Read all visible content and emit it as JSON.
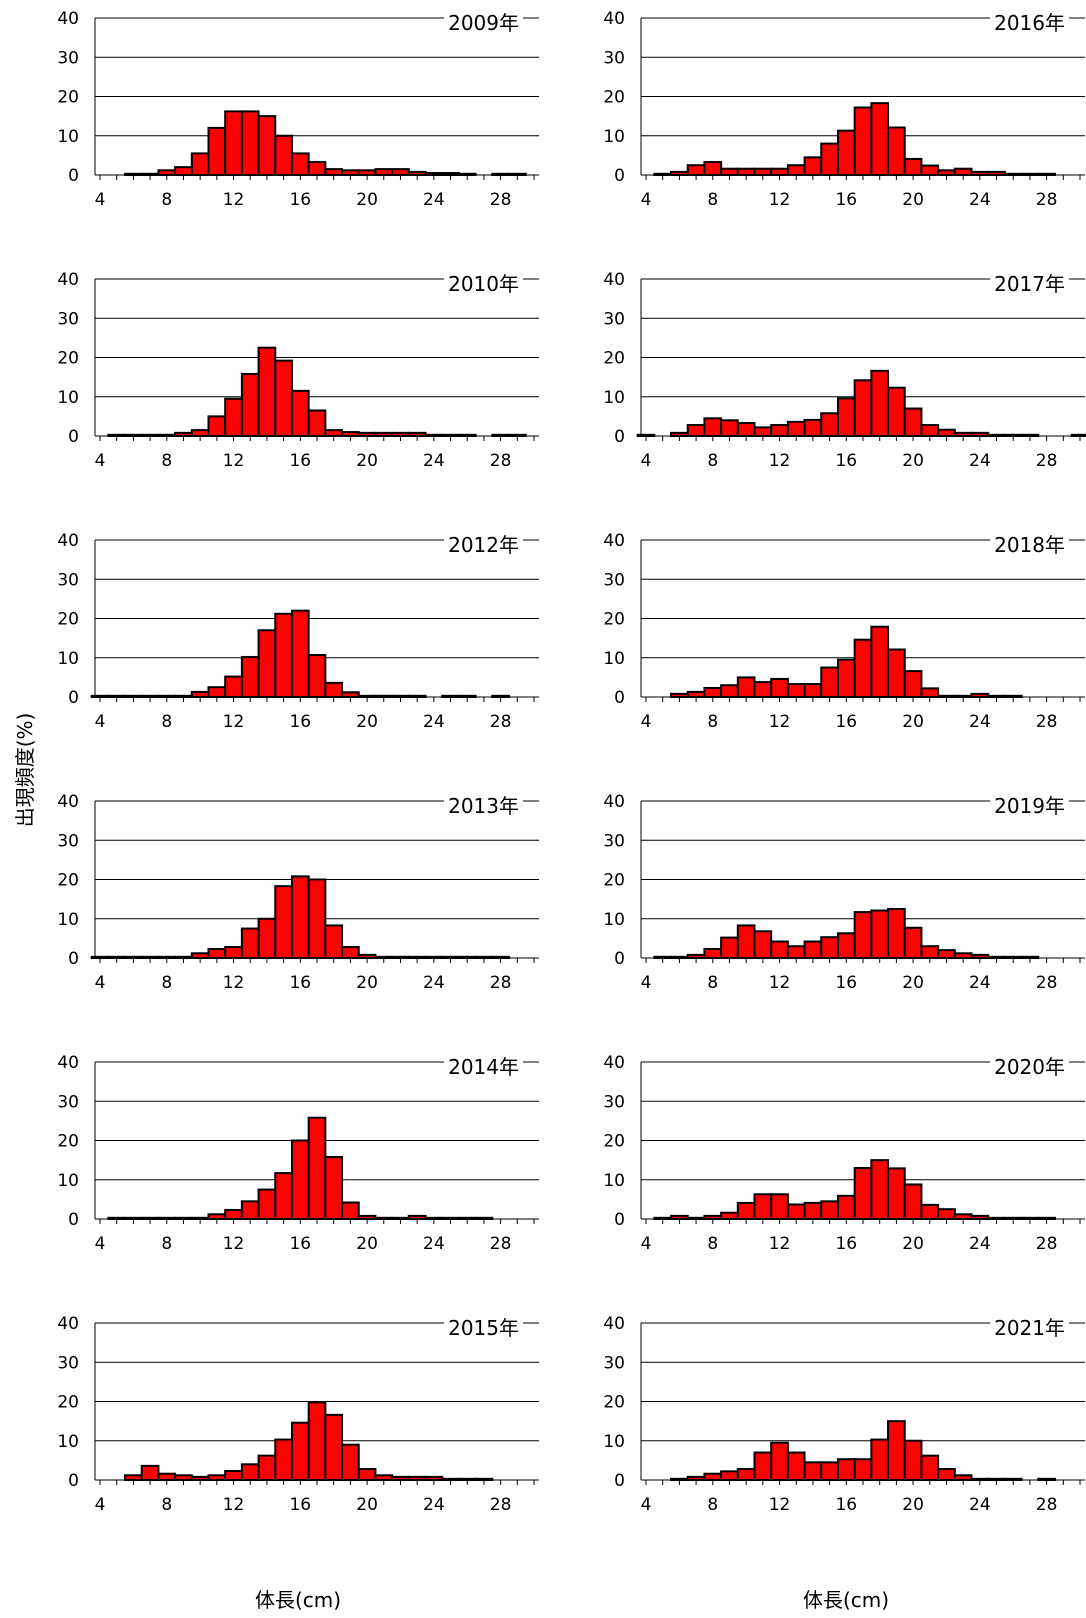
{
  "figure": {
    "y_axis_label": "出現頻度(%)",
    "x_axis_label_left": "体長(cm)",
    "x_axis_label_right": "体長(cm)"
  },
  "colors": {
    "bar": "#ff0000",
    "bar_edge": "#000000",
    "grid": "#000000",
    "background": "#ffffff"
  },
  "chart_data": [
    {
      "type": "bar",
      "title": "2009年",
      "x": [
        6,
        7,
        8,
        9,
        10,
        11,
        12,
        13,
        14,
        15,
        16,
        17,
        18,
        19,
        20,
        21,
        22,
        23,
        24,
        25,
        26,
        28,
        29
      ],
      "values": [
        0.3,
        0.3,
        1.2,
        2.0,
        5.5,
        12,
        16.2,
        16.2,
        15,
        10,
        5.5,
        3.3,
        1.5,
        1.2,
        1.2,
        1.5,
        1.5,
        0.8,
        0.5,
        0.5,
        0.3,
        0.3,
        0.3
      ],
      "xticks": [
        4,
        8,
        12,
        16,
        20,
        24,
        28
      ],
      "yticks": [
        0,
        10,
        20,
        30,
        40
      ],
      "ylim": [
        0,
        40
      ],
      "xlim": [
        4,
        30
      ]
    },
    {
      "type": "bar",
      "title": "2010年",
      "x": [
        5,
        6,
        7,
        8,
        9,
        10,
        11,
        12,
        13,
        14,
        15,
        16,
        17,
        18,
        19,
        20,
        21,
        22,
        23,
        24,
        25,
        26,
        28,
        29
      ],
      "values": [
        0.3,
        0.3,
        0.3,
        0.3,
        0.8,
        1.5,
        5,
        9.5,
        15.8,
        22.5,
        19.2,
        11.5,
        6.5,
        1.5,
        1,
        0.8,
        0.8,
        0.8,
        0.8,
        0.3,
        0.3,
        0.3,
        0.3,
        0.3
      ],
      "xticks": [
        4,
        8,
        12,
        16,
        20,
        24,
        28
      ],
      "yticks": [
        0,
        10,
        20,
        30,
        40
      ],
      "ylim": [
        0,
        40
      ],
      "xlim": [
        4,
        30
      ]
    },
    {
      "type": "bar",
      "title": "2012年",
      "x": [
        4,
        5,
        6,
        7,
        8,
        9,
        10,
        11,
        12,
        13,
        14,
        15,
        16,
        17,
        18,
        19,
        20,
        21,
        22,
        23,
        25,
        26,
        28
      ],
      "values": [
        0.3,
        0.3,
        0.3,
        0.3,
        0.3,
        0.3,
        1.3,
        2.5,
        5.2,
        10.2,
        17,
        21.2,
        22,
        10.7,
        3.6,
        1.2,
        0.3,
        0.3,
        0.3,
        0.3,
        0.3,
        0.3,
        0.3
      ],
      "xticks": [
        4,
        8,
        12,
        16,
        20,
        24,
        28
      ],
      "yticks": [
        0,
        10,
        20,
        30,
        40
      ],
      "ylim": [
        0,
        40
      ],
      "xlim": [
        4,
        30
      ]
    },
    {
      "type": "bar",
      "title": "2013年",
      "x": [
        4,
        5,
        6,
        7,
        8,
        9,
        10,
        11,
        12,
        13,
        14,
        15,
        16,
        17,
        18,
        19,
        20,
        21,
        22,
        23,
        24,
        25,
        26,
        27,
        28
      ],
      "values": [
        0.3,
        0.3,
        0.3,
        0.3,
        0.3,
        0.3,
        1.2,
        2.3,
        2.8,
        7.5,
        10,
        18.3,
        20.8,
        20,
        8.3,
        2.8,
        0.8,
        0.3,
        0.3,
        0.3,
        0.3,
        0.3,
        0.3,
        0.3,
        0.3
      ],
      "xticks": [
        4,
        8,
        12,
        16,
        20,
        24,
        28
      ],
      "yticks": [
        0,
        10,
        20,
        30,
        40
      ],
      "ylim": [
        0,
        40
      ],
      "xlim": [
        4,
        30
      ]
    },
    {
      "type": "bar",
      "title": "2014年",
      "x": [
        5,
        6,
        7,
        8,
        9,
        10,
        11,
        12,
        13,
        14,
        15,
        16,
        17,
        18,
        19,
        20,
        21,
        22,
        23,
        24,
        25,
        26,
        27
      ],
      "values": [
        0.3,
        0.3,
        0.3,
        0.3,
        0.3,
        0.3,
        1.2,
        2.3,
        4.5,
        7.5,
        11.7,
        20,
        25.8,
        15.8,
        4.2,
        0.8,
        0.3,
        0.3,
        0.8,
        0.3,
        0.3,
        0.3,
        0.3
      ],
      "xticks": [
        4,
        8,
        12,
        16,
        20,
        24,
        28
      ],
      "yticks": [
        0,
        10,
        20,
        30,
        40
      ],
      "ylim": [
        0,
        40
      ],
      "xlim": [
        4,
        30
      ]
    },
    {
      "type": "bar",
      "title": "2015年",
      "x": [
        6,
        7,
        8,
        9,
        10,
        11,
        12,
        13,
        14,
        15,
        16,
        17,
        18,
        19,
        20,
        21,
        22,
        23,
        24,
        25,
        26,
        27
      ],
      "values": [
        1.2,
        3.6,
        1.6,
        1.2,
        0.8,
        1.2,
        2.3,
        4,
        6.2,
        10.3,
        14.6,
        19.8,
        16.6,
        9,
        2.8,
        1.2,
        0.8,
        0.8,
        0.8,
        0.3,
        0.3,
        0.3
      ],
      "xticks": [
        4,
        8,
        12,
        16,
        20,
        24,
        28
      ],
      "yticks": [
        0,
        10,
        20,
        30,
        40
      ],
      "ylim": [
        0,
        40
      ],
      "xlim": [
        4,
        30
      ]
    },
    {
      "type": "bar",
      "title": "2016年",
      "x": [
        5,
        6,
        7,
        8,
        9,
        10,
        11,
        12,
        13,
        14,
        15,
        16,
        17,
        18,
        19,
        20,
        21,
        22,
        23,
        24,
        25,
        26,
        27,
        28
      ],
      "values": [
        0.3,
        0.8,
        2.5,
        3.3,
        1.6,
        1.6,
        1.6,
        1.6,
        2.5,
        4.5,
        8,
        11.3,
        17.2,
        18.3,
        12.1,
        4.1,
        2.4,
        1.2,
        1.6,
        0.8,
        0.8,
        0.3,
        0.3,
        0.3
      ],
      "xticks": [
        4,
        8,
        12,
        16,
        20,
        24,
        28
      ],
      "yticks": [
        0,
        10,
        20,
        30,
        40
      ],
      "ylim": [
        0,
        40
      ],
      "xlim": [
        4,
        30
      ]
    },
    {
      "type": "bar",
      "title": "2017年",
      "x": [
        4,
        6,
        7,
        8,
        9,
        10,
        11,
        12,
        13,
        14,
        15,
        16,
        17,
        18,
        19,
        20,
        21,
        22,
        23,
        24,
        25,
        26,
        27,
        30
      ],
      "values": [
        0.3,
        0.8,
        2.8,
        4.5,
        4,
        3.3,
        2.2,
        2.8,
        3.6,
        4.1,
        5.8,
        9.6,
        14.2,
        16.6,
        12.3,
        7,
        2.8,
        1.6,
        0.8,
        0.8,
        0.3,
        0.3,
        0.3,
        0.3
      ],
      "xticks": [
        4,
        8,
        12,
        16,
        20,
        24,
        28
      ],
      "yticks": [
        0,
        10,
        20,
        30,
        40
      ],
      "ylim": [
        0,
        40
      ],
      "xlim": [
        4,
        30
      ]
    },
    {
      "type": "bar",
      "title": "2018年",
      "x": [
        6,
        7,
        8,
        9,
        10,
        11,
        12,
        13,
        14,
        15,
        16,
        17,
        18,
        19,
        20,
        21,
        22,
        23,
        24,
        25,
        26
      ],
      "values": [
        0.8,
        1.3,
        2.3,
        3,
        5,
        3.8,
        4.6,
        3.3,
        3.3,
        7.5,
        9.5,
        14.6,
        17.9,
        12.1,
        6.6,
        2.2,
        0.3,
        0.3,
        0.8,
        0.3,
        0.3
      ],
      "xticks": [
        4,
        8,
        12,
        16,
        20,
        24,
        28
      ],
      "yticks": [
        0,
        10,
        20,
        30,
        40
      ],
      "ylim": [
        0,
        40
      ],
      "xlim": [
        4,
        30
      ]
    },
    {
      "type": "bar",
      "title": "2019年",
      "x": [
        5,
        6,
        7,
        8,
        9,
        10,
        11,
        12,
        13,
        14,
        15,
        16,
        17,
        18,
        19,
        20,
        21,
        22,
        23,
        24,
        25,
        26,
        27
      ],
      "values": [
        0.3,
        0.3,
        0.8,
        2.3,
        5.2,
        8.3,
        6.8,
        4.2,
        3,
        4.2,
        5.3,
        6.3,
        11.7,
        12.1,
        12.5,
        7.7,
        3,
        2,
        1.2,
        0.8,
        0.3,
        0.3,
        0.3
      ],
      "xticks": [
        4,
        8,
        12,
        16,
        20,
        24,
        28
      ],
      "yticks": [
        0,
        10,
        20,
        30,
        40
      ],
      "ylim": [
        0,
        40
      ],
      "xlim": [
        4,
        30
      ]
    },
    {
      "type": "bar",
      "title": "2020年",
      "x": [
        5,
        6,
        7,
        8,
        9,
        10,
        11,
        12,
        13,
        14,
        15,
        16,
        17,
        18,
        19,
        20,
        21,
        22,
        23,
        24,
        25,
        26,
        27,
        28
      ],
      "values": [
        0.3,
        0.8,
        0.3,
        0.8,
        1.6,
        4.1,
        6.3,
        6.3,
        3.7,
        4.1,
        4.5,
        5.9,
        13,
        15,
        12.9,
        8.8,
        3.6,
        2.5,
        1.2,
        0.8,
        0.3,
        0.3,
        0.3,
        0.3
      ],
      "xticks": [
        4,
        8,
        12,
        16,
        20,
        24,
        28
      ],
      "yticks": [
        0,
        10,
        20,
        30,
        40
      ],
      "ylim": [
        0,
        40
      ],
      "xlim": [
        4,
        30
      ]
    },
    {
      "type": "bar",
      "title": "2021年",
      "x": [
        6,
        7,
        8,
        9,
        10,
        11,
        12,
        13,
        14,
        15,
        16,
        17,
        18,
        19,
        20,
        21,
        22,
        23,
        24,
        25,
        26,
        28
      ],
      "values": [
        0.3,
        0.8,
        1.6,
        2.2,
        2.8,
        7,
        9.5,
        7,
        4.5,
        4.5,
        5.3,
        5.3,
        10.3,
        15,
        10,
        6.2,
        2.8,
        1.2,
        0.3,
        0.3,
        0.3,
        0.3
      ],
      "xticks": [
        4,
        8,
        12,
        16,
        20,
        24,
        28
      ],
      "yticks": [
        0,
        10,
        20,
        30,
        40
      ],
      "ylim": [
        0,
        40
      ],
      "xlim": [
        4,
        30
      ]
    }
  ]
}
